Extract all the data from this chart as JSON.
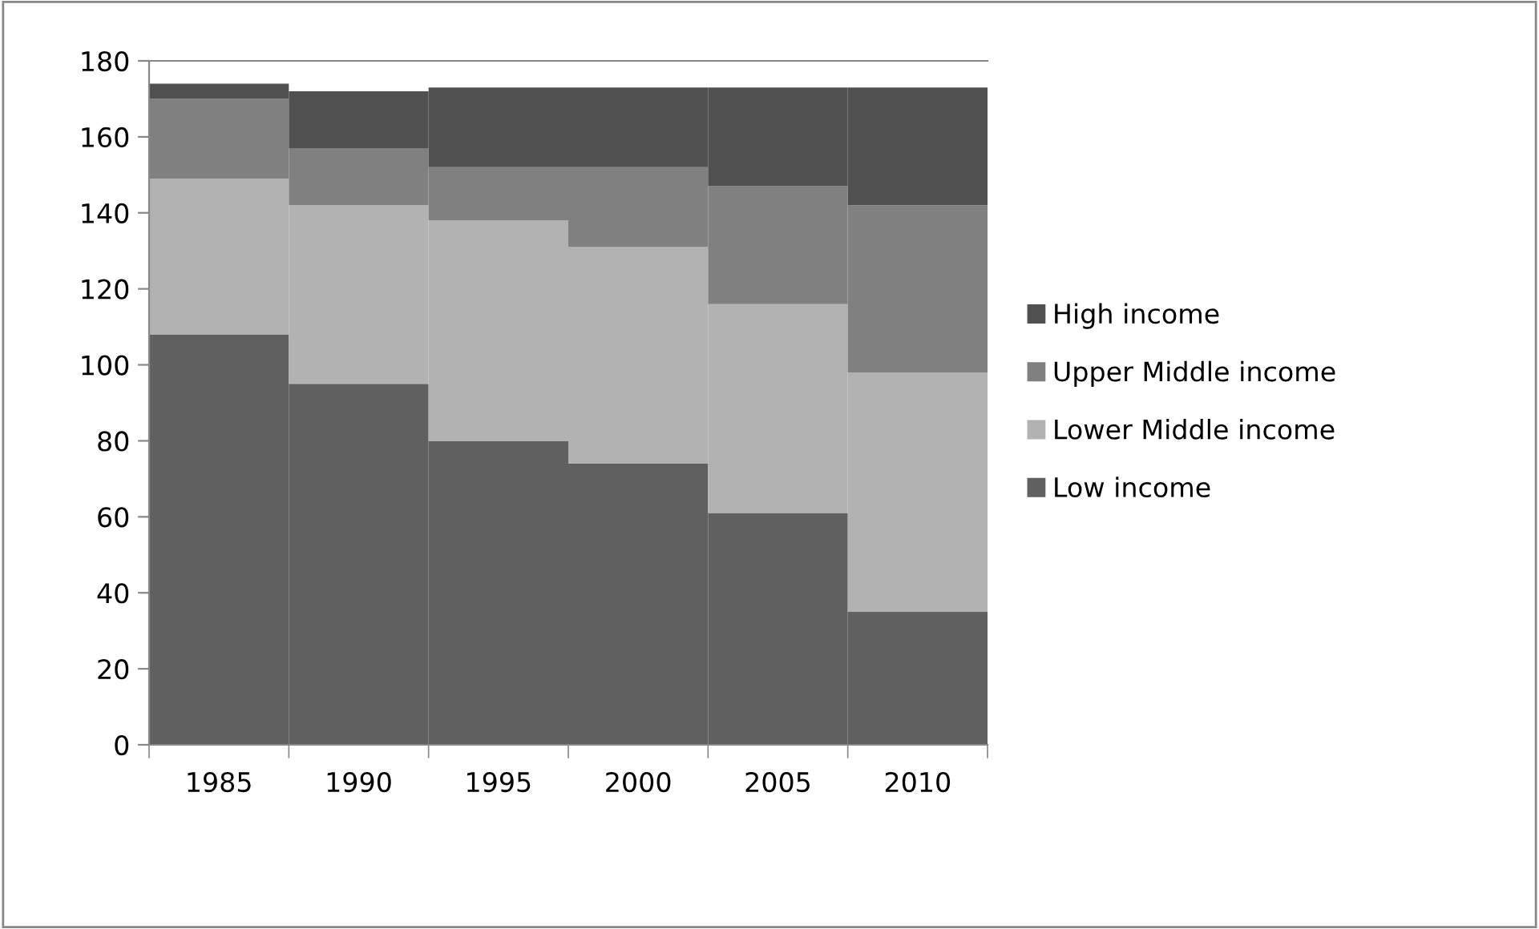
{
  "chart_data": {
    "type": "bar",
    "stacked": true,
    "categories": [
      "1985",
      "1990",
      "1995",
      "2000",
      "2005",
      "2010"
    ],
    "series": [
      {
        "name": "Low income",
        "color": "#606060",
        "values": [
          108,
          95,
          80,
          74,
          61,
          35
        ]
      },
      {
        "name": "Lower Middle income",
        "color": "#b2b2b2",
        "values": [
          41,
          47,
          58,
          57,
          55,
          63
        ]
      },
      {
        "name": "Upper Middle income",
        "color": "#808080",
        "values": [
          21,
          15,
          14,
          21,
          31,
          44
        ]
      },
      {
        "name": "High income",
        "color": "#505050",
        "values": [
          4,
          15,
          21,
          21,
          26,
          31
        ]
      }
    ],
    "ylim": [
      0,
      180
    ],
    "yticks": [
      0,
      20,
      40,
      60,
      80,
      100,
      120,
      140,
      160,
      180
    ],
    "grid": false,
    "legend": "right"
  }
}
